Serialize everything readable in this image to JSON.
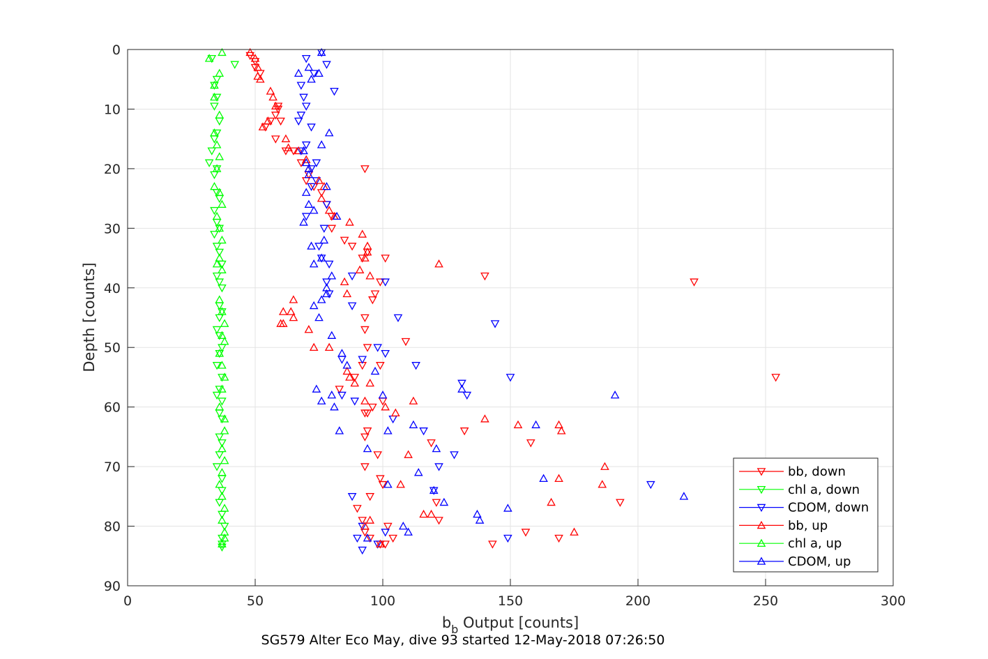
{
  "chart_data": {
    "type": "scatter",
    "title": "SG579 Alter Eco May, dive 93 started 12-May-2018 07:26:50",
    "xlabel_main": "b",
    "xlabel_sub": "b",
    "xlabel_rest": " Output [counts]",
    "ylabel": "Depth [counts]",
    "xlim": [
      0,
      300
    ],
    "ylim": [
      0,
      90
    ],
    "y_reversed": true,
    "grid": true,
    "legend_position": "bottom-right",
    "x_ticks": [
      0,
      50,
      100,
      150,
      200,
      250,
      300
    ],
    "y_ticks": [
      0,
      10,
      20,
      30,
      40,
      50,
      60,
      70,
      80,
      90
    ],
    "series": [
      {
        "name": "bb, down",
        "color": "#ff0000",
        "marker": "triangle-down",
        "x": [
          48,
          50,
          50,
          52,
          59,
          59,
          58,
          56,
          54,
          60,
          58,
          65,
          62,
          68,
          71,
          70,
          73,
          76,
          78,
          80,
          80,
          85,
          88,
          92,
          94,
          101,
          99,
          97,
          96,
          93,
          93,
          94,
          92,
          89,
          83,
          99,
          100,
          96,
          93,
          94,
          94,
          93,
          98,
          93,
          99,
          100,
          95,
          90,
          92,
          102,
          93,
          95,
          99,
          101,
          104,
          109,
          93,
          119,
          121,
          122,
          132,
          140,
          158,
          169,
          193,
          156,
          143,
          254,
          222
        ],
        "y": [
          1,
          2,
          3,
          4,
          9.5,
          10,
          11,
          12,
          13,
          12,
          15,
          17,
          17,
          19,
          21,
          22,
          23,
          24,
          26,
          28,
          30,
          32,
          33,
          35,
          34,
          35,
          39,
          41,
          42,
          45,
          47,
          50,
          53,
          55,
          57,
          53,
          59,
          60,
          61,
          61,
          64,
          65,
          68,
          70,
          72,
          73,
          75,
          77,
          79,
          80,
          81,
          82,
          83,
          83,
          82,
          49,
          20,
          66,
          76,
          79,
          64,
          38,
          66,
          82,
          76,
          81,
          83,
          55,
          39
        ],
        "note": ""
      },
      {
        "name": "chl a, down",
        "color": "#00ff00",
        "marker": "triangle-down",
        "x": [
          33,
          42,
          35,
          34,
          35,
          34,
          36,
          35,
          34,
          33,
          35,
          32,
          34,
          35,
          36,
          34,
          35,
          36,
          34,
          35,
          36,
          37,
          35,
          36,
          37,
          36,
          37,
          36,
          35,
          36,
          37,
          36,
          35,
          37,
          36,
          35,
          37,
          36,
          37,
          36,
          37,
          36,
          35,
          37,
          37,
          36,
          37,
          38,
          37,
          37,
          37
        ],
        "y": [
          1.5,
          2.5,
          5,
          6,
          8,
          9.5,
          12,
          14,
          15,
          17,
          20,
          19,
          21,
          24,
          25,
          27,
          29,
          30,
          31,
          33,
          34,
          36,
          38,
          39,
          40,
          43,
          44,
          45,
          47,
          48,
          50,
          51,
          53,
          55,
          57,
          58,
          59,
          61,
          62,
          65,
          66,
          68,
          70,
          72,
          74,
          76,
          78,
          80,
          82,
          83,
          83.5
        ],
        "note": ""
      },
      {
        "name": "CDOM, down",
        "color": "#0000ff",
        "marker": "triangle-down",
        "x": [
          76,
          70,
          78,
          81,
          73,
          68,
          69,
          70,
          68,
          67,
          72,
          70,
          68,
          74,
          72,
          74,
          72,
          78,
          70,
          77,
          75,
          76,
          79,
          88,
          78,
          79,
          101,
          88,
          106,
          144,
          98,
          92,
          101,
          84,
          150,
          131,
          84,
          89,
          104,
          113,
          116,
          128,
          122,
          133,
          120,
          88,
          92,
          90,
          101,
          149,
          98,
          92,
          205
        ],
        "y": [
          0.5,
          1.5,
          2.5,
          7,
          4,
          6,
          8,
          9.5,
          11,
          12,
          13,
          16,
          17,
          19,
          20,
          22,
          23,
          26,
          28,
          30,
          33,
          35,
          36,
          38,
          39,
          41,
          39,
          43,
          45,
          46,
          50,
          52,
          51,
          52,
          55,
          56,
          58,
          59,
          62,
          53,
          64,
          68,
          70,
          58,
          74,
          75,
          80,
          82,
          81,
          82,
          83,
          84,
          73
        ],
        "note": ""
      },
      {
        "name": "bb, up",
        "color": "#ff0000",
        "marker": "triangle-up",
        "x": [
          48,
          50,
          51,
          51,
          52,
          56,
          57,
          58,
          55,
          53,
          62,
          63,
          67,
          70,
          71,
          75,
          77,
          76,
          79,
          81,
          87,
          92,
          94,
          93,
          91,
          94,
          95,
          85,
          86,
          65,
          61,
          64,
          65,
          61,
          60,
          71,
          73,
          79,
          86,
          87,
          89,
          93,
          101,
          95,
          112,
          105,
          140,
          153,
          122,
          170,
          169,
          187,
          186,
          169,
          175,
          166,
          119,
          116,
          93,
          95,
          99,
          107,
          110
        ],
        "y": [
          0.5,
          1.5,
          3,
          4.5,
          5,
          7,
          8,
          9.5,
          12,
          13,
          15,
          16.5,
          17,
          18.5,
          20,
          22,
          23,
          25,
          27,
          28,
          29,
          31,
          33,
          35,
          37,
          34,
          38,
          39,
          41,
          42,
          44,
          44,
          45,
          46,
          46,
          47,
          50,
          50,
          54,
          55,
          56,
          59,
          60,
          56,
          59,
          61,
          62,
          63,
          36,
          64,
          63,
          70,
          73,
          72,
          81,
          76,
          78,
          78,
          80,
          79,
          83,
          73,
          68
        ],
        "note": ""
      },
      {
        "name": "chl a, up",
        "color": "#00ff00",
        "marker": "triangle-up",
        "x": [
          37,
          32,
          36,
          34,
          34,
          36,
          34,
          35,
          36,
          35,
          34,
          36,
          37,
          35,
          36,
          37,
          36,
          35,
          37,
          36,
          37,
          38,
          37,
          38,
          36,
          37,
          38,
          37,
          36,
          38,
          38,
          37,
          38,
          37,
          36,
          37,
          38,
          37,
          38,
          38,
          37
        ],
        "y": [
          0.5,
          1.5,
          4,
          6,
          8,
          11,
          14,
          16,
          18,
          20,
          23,
          24,
          26,
          28,
          30,
          32,
          35,
          36,
          37,
          42,
          44,
          46,
          48,
          49,
          51,
          53,
          55,
          57,
          60,
          62,
          64,
          67,
          69,
          71,
          73,
          75,
          77,
          79,
          81,
          82,
          83
        ],
        "note": ""
      },
      {
        "name": "CDOM, up",
        "color": "#0000ff",
        "marker": "triangle-up",
        "x": [
          76,
          71,
          67,
          75,
          72,
          79,
          76,
          69,
          70,
          71,
          78,
          82,
          70,
          71,
          73,
          69,
          71,
          77,
          72,
          73,
          76,
          80,
          78,
          76,
          73,
          75,
          80,
          78,
          84,
          74,
          80,
          86,
          76,
          81,
          83,
          94,
          97,
          100,
          102,
          112,
          131,
          114,
          160,
          110,
          120,
          102,
          121,
          137,
          124,
          149,
          191,
          218,
          163,
          138,
          94,
          108
        ],
        "y": [
          0.5,
          3,
          4,
          4,
          5,
          14,
          16,
          17,
          19,
          20,
          23,
          28,
          24,
          21,
          27,
          29,
          26,
          32,
          33,
          36,
          35,
          38,
          41,
          42,
          43,
          45,
          48,
          40,
          51,
          57,
          58,
          53,
          59,
          60,
          64,
          67,
          54,
          58,
          64,
          63,
          57,
          71,
          63,
          81,
          74,
          73,
          67,
          78,
          76,
          77,
          58,
          75,
          72,
          79,
          82,
          80
        ],
        "note": ""
      }
    ]
  }
}
